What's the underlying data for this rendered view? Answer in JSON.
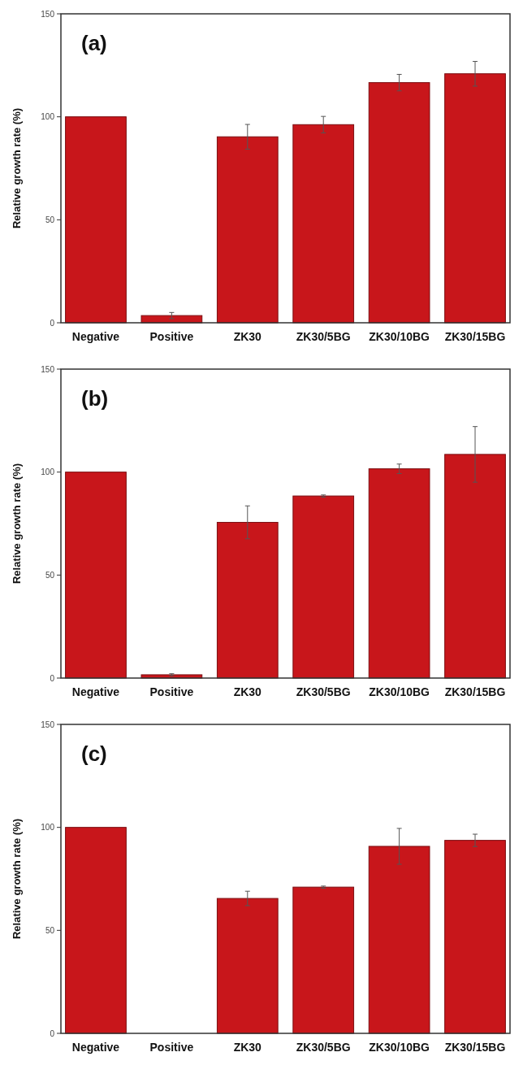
{
  "chart_data": [
    {
      "type": "bar",
      "title": "(a)",
      "ylabel": "Relative growth rate (%)",
      "categories": [
        "Negative",
        "Positive",
        "ZK30",
        "ZK30/5BG",
        "ZK30/10BG",
        "ZK30/15BG"
      ],
      "values": [
        100,
        3.5,
        90.3,
        96.2,
        116.6,
        120.9
      ],
      "errors": [
        null,
        1.5,
        6,
        4,
        4,
        6
      ],
      "color": "#c8161b",
      "ylim": [
        0,
        150
      ],
      "yticks": [
        0,
        50,
        100,
        150
      ],
      "grid": false
    },
    {
      "type": "bar",
      "title": "(b)",
      "ylabel": "Relative growth rate (%)",
      "categories": [
        "Negative",
        "Positive",
        "ZK30",
        "ZK30/5BG",
        "ZK30/10BG",
        "ZK30/15BG"
      ],
      "values": [
        100,
        1.6,
        75.6,
        88.4,
        101.6,
        108.6
      ],
      "errors": [
        null,
        0.5,
        8,
        0.5,
        2.3,
        13.5
      ],
      "color": "#c8161b",
      "ylim": [
        0,
        150
      ],
      "yticks": [
        0,
        50,
        100,
        150
      ],
      "grid": false
    },
    {
      "type": "bar",
      "title": "(c)",
      "ylabel": "Relative growth rate (%)",
      "categories": [
        "Negative",
        "Positive",
        "ZK30",
        "ZK30/5BG",
        "ZK30/10BG",
        "ZK30/15BG"
      ],
      "values": [
        100,
        0,
        65.5,
        71,
        90.8,
        93.7
      ],
      "errors": [
        null,
        null,
        3.5,
        0.5,
        8.7,
        3
      ],
      "color": "#c8161b",
      "ylim": [
        0,
        150
      ],
      "yticks": [
        0,
        50,
        100,
        150
      ],
      "grid": false
    }
  ]
}
